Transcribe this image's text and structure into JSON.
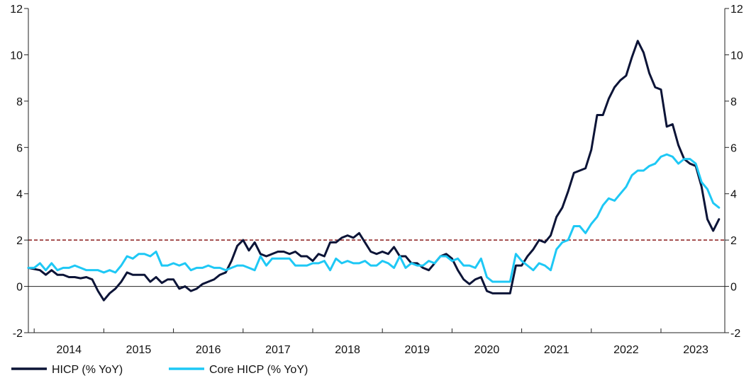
{
  "chart_data": {
    "type": "line",
    "title": "",
    "xlabel": "",
    "ylabel": "",
    "ylim": [
      -2,
      12
    ],
    "yticks": [
      "-2",
      "0",
      "2",
      "4",
      "6",
      "8",
      "10",
      "12"
    ],
    "x_start": "2013-12",
    "x_end": "2023-12",
    "xticks": [
      "2014",
      "2015",
      "2016",
      "2017",
      "2018",
      "2019",
      "2020",
      "2021",
      "2022",
      "2023"
    ],
    "target_line": 2,
    "grid": false,
    "legend_position": "bottom-left",
    "colors": {
      "hicp": "#0c1437",
      "core": "#1ec8f5",
      "target": "#8b1a1a",
      "axis": "#222222"
    },
    "series": [
      {
        "name": "HICP (% YoY)",
        "color": "#0c1437",
        "values": [
          0.8,
          0.75,
          0.7,
          0.5,
          0.7,
          0.5,
          0.5,
          0.4,
          0.4,
          0.35,
          0.4,
          0.3,
          -0.2,
          -0.6,
          -0.3,
          -0.1,
          0.2,
          0.6,
          0.5,
          0.5,
          0.5,
          0.2,
          0.4,
          0.15,
          0.3,
          0.3,
          -0.1,
          0.0,
          -0.2,
          -0.1,
          0.1,
          0.2,
          0.3,
          0.5,
          0.6,
          1.1,
          1.75,
          2.0,
          1.55,
          1.9,
          1.4,
          1.3,
          1.4,
          1.5,
          1.5,
          1.4,
          1.5,
          1.3,
          1.3,
          1.1,
          1.4,
          1.3,
          1.9,
          1.9,
          2.1,
          2.2,
          2.1,
          2.3,
          1.9,
          1.5,
          1.4,
          1.5,
          1.4,
          1.7,
          1.3,
          1.3,
          1.0,
          1.0,
          0.8,
          0.7,
          1.0,
          1.3,
          1.4,
          1.2,
          0.7,
          0.3,
          0.1,
          0.3,
          0.4,
          -0.2,
          -0.3,
          -0.3,
          -0.3,
          -0.3,
          0.9,
          0.9,
          1.3,
          1.6,
          2.0,
          1.9,
          2.2,
          3.0,
          3.4,
          4.1,
          4.9,
          5.0,
          5.1,
          5.9,
          7.4,
          7.4,
          8.1,
          8.6,
          8.9,
          9.1,
          9.9,
          10.6,
          10.1,
          9.2,
          8.6,
          8.5,
          6.9,
          7.0,
          6.1,
          5.5,
          5.3,
          5.2,
          4.3,
          2.9,
          2.4,
          2.9
        ]
      },
      {
        "name": "Core HICP (% YoY)",
        "color": "#1ec8f5",
        "values": [
          0.8,
          0.8,
          1.0,
          0.7,
          1.0,
          0.7,
          0.8,
          0.8,
          0.9,
          0.8,
          0.7,
          0.7,
          0.7,
          0.6,
          0.7,
          0.6,
          0.9,
          1.3,
          1.2,
          1.4,
          1.4,
          1.3,
          1.5,
          0.9,
          0.9,
          1.0,
          0.9,
          1.0,
          0.7,
          0.8,
          0.8,
          0.9,
          0.8,
          0.8,
          0.7,
          0.8,
          0.9,
          0.9,
          0.8,
          0.7,
          1.3,
          0.9,
          1.2,
          1.2,
          1.2,
          1.2,
          0.9,
          0.9,
          0.9,
          1.0,
          1.0,
          1.1,
          0.7,
          1.2,
          1.0,
          1.1,
          1.0,
          1.0,
          1.1,
          0.9,
          0.9,
          1.1,
          1.0,
          0.8,
          1.3,
          0.8,
          1.0,
          0.9,
          0.9,
          1.1,
          1.0,
          1.3,
          1.3,
          1.1,
          1.2,
          0.9,
          0.9,
          0.8,
          1.2,
          0.4,
          0.2,
          0.2,
          0.2,
          0.2,
          1.4,
          1.1,
          0.9,
          0.7,
          1.0,
          0.9,
          0.7,
          1.6,
          1.9,
          2.0,
          2.6,
          2.6,
          2.3,
          2.7,
          3.0,
          3.5,
          3.8,
          3.7,
          4.0,
          4.3,
          4.8,
          5.0,
          5.0,
          5.2,
          5.3,
          5.6,
          5.7,
          5.6,
          5.3,
          5.5,
          5.5,
          5.3,
          4.5,
          4.2,
          3.6,
          3.4
        ]
      }
    ]
  }
}
